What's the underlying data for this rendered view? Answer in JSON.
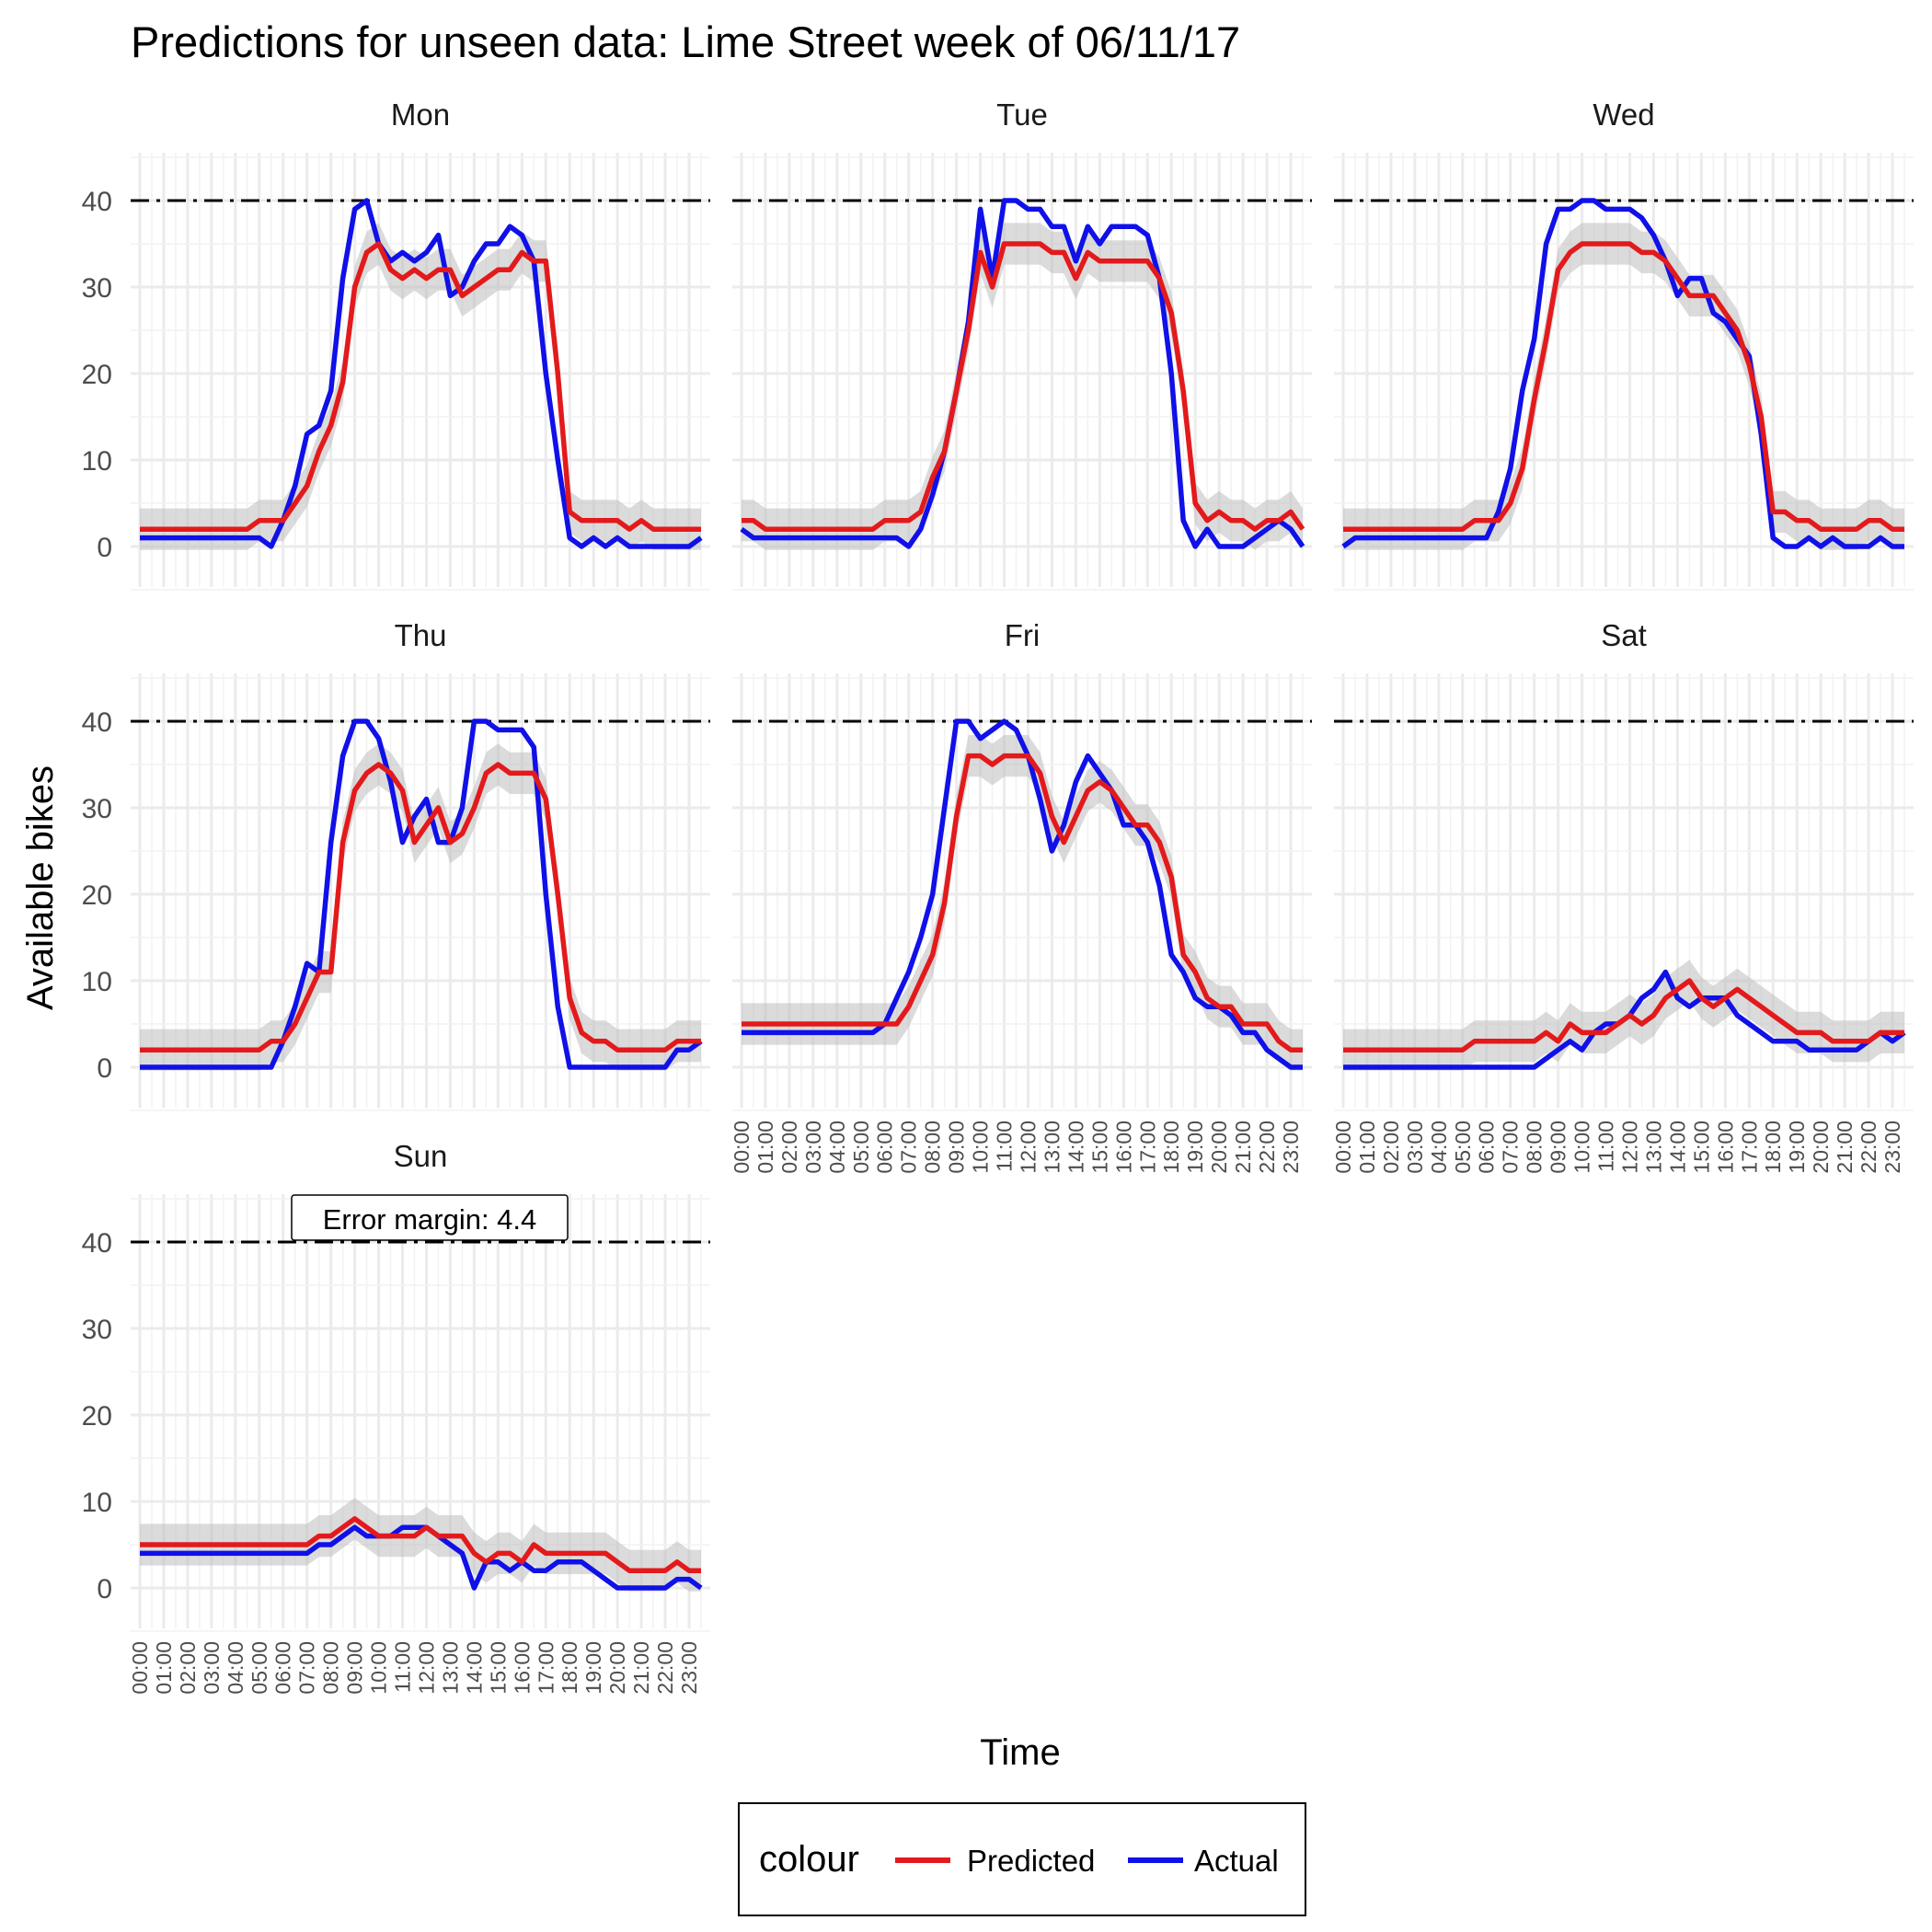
{
  "chart_data": {
    "type": "line",
    "title": "Predictions for unseen data: Lime Street week of 06/11/17",
    "xlabel": "Time",
    "ylabel": "Available bikes",
    "ylim": [
      0,
      45
    ],
    "y_ticks": [
      0,
      10,
      20,
      30,
      40
    ],
    "x_tick_labels": [
      "00:00",
      "01:00",
      "02:00",
      "03:00",
      "04:00",
      "05:00",
      "06:00",
      "07:00",
      "08:00",
      "09:00",
      "10:00",
      "11:00",
      "12:00",
      "13:00",
      "14:00",
      "15:00",
      "16:00",
      "17:00",
      "18:00",
      "19:00",
      "20:00",
      "21:00",
      "22:00",
      "23:00"
    ],
    "capacity_line": 40,
    "ribbon_half_width": 2.4,
    "grid": true,
    "legend": {
      "title": "colour",
      "position": "bottom",
      "entries": [
        {
          "name": "Predicted",
          "color": "#e31a1c"
        },
        {
          "name": "Actual",
          "color": "#1010e8"
        }
      ]
    },
    "annotation": {
      "panel": "Sun",
      "text": "Error margin: 4.4"
    },
    "panels": [
      {
        "name": "Mon",
        "x": [
          0,
          0.5,
          1,
          1.5,
          2,
          2.5,
          3,
          3.5,
          4,
          4.5,
          5,
          5.5,
          6,
          6.5,
          7,
          7.5,
          8,
          8.5,
          9,
          9.5,
          10,
          10.5,
          11,
          11.5,
          12,
          12.5,
          13,
          13.5,
          14,
          14.5,
          15,
          15.5,
          16,
          16.5,
          17,
          17.5,
          18,
          18.5,
          19,
          19.5,
          20,
          20.5,
          21,
          21.5,
          22,
          22.5,
          23,
          23.5
        ],
        "predicted": [
          2,
          2,
          2,
          2,
          2,
          2,
          2,
          2,
          2,
          2,
          3,
          3,
          3,
          5,
          7,
          11,
          14,
          19,
          30,
          34,
          35,
          32,
          31,
          32,
          31,
          32,
          32,
          29,
          30,
          31,
          32,
          32,
          34,
          33,
          33,
          20,
          4,
          3,
          3,
          3,
          3,
          2,
          3,
          2,
          2,
          2,
          2,
          2
        ],
        "actual": [
          1,
          1,
          1,
          1,
          1,
          1,
          1,
          1,
          1,
          1,
          1,
          0,
          3,
          7,
          13,
          14,
          18,
          31,
          39,
          40,
          35,
          33,
          34,
          33,
          34,
          36,
          29,
          30,
          33,
          35,
          35,
          37,
          36,
          33,
          20,
          10,
          1,
          0,
          1,
          0,
          1,
          0,
          0,
          0,
          0,
          0,
          0,
          1
        ]
      },
      {
        "name": "Tue",
        "x": [
          0,
          0.5,
          1,
          1.5,
          2,
          2.5,
          3,
          3.5,
          4,
          4.5,
          5,
          5.5,
          6,
          6.5,
          7,
          7.5,
          8,
          8.5,
          9,
          9.5,
          10,
          10.5,
          11,
          11.5,
          12,
          12.5,
          13,
          13.5,
          14,
          14.5,
          15,
          15.5,
          16,
          16.5,
          17,
          17.5,
          18,
          18.5,
          19,
          19.5,
          20,
          20.5,
          21,
          21.5,
          22,
          22.5,
          23,
          23.5
        ],
        "predicted": [
          3,
          3,
          2,
          2,
          2,
          2,
          2,
          2,
          2,
          2,
          2,
          2,
          3,
          3,
          3,
          4,
          8,
          11,
          18,
          25,
          34,
          30,
          35,
          35,
          35,
          35,
          34,
          34,
          31,
          34,
          33,
          33,
          33,
          33,
          33,
          31,
          27,
          18,
          5,
          3,
          4,
          3,
          3,
          2,
          3,
          3,
          4,
          2
        ],
        "actual": [
          2,
          1,
          1,
          1,
          1,
          1,
          1,
          1,
          1,
          1,
          1,
          1,
          1,
          1,
          0,
          2,
          6,
          11,
          18,
          26,
          39,
          31,
          40,
          40,
          39,
          39,
          37,
          37,
          33,
          37,
          35,
          37,
          37,
          37,
          36,
          31,
          20,
          3,
          0,
          2,
          0,
          0,
          0,
          1,
          2,
          3,
          2,
          0
        ]
      },
      {
        "name": "Wed",
        "x": [
          0,
          0.5,
          1,
          1.5,
          2,
          2.5,
          3,
          3.5,
          4,
          4.5,
          5,
          5.5,
          6,
          6.5,
          7,
          7.5,
          8,
          8.5,
          9,
          9.5,
          10,
          10.5,
          11,
          11.5,
          12,
          12.5,
          13,
          13.5,
          14,
          14.5,
          15,
          15.5,
          16,
          16.5,
          17,
          17.5,
          18,
          18.5,
          19,
          19.5,
          20,
          20.5,
          21,
          21.5,
          22,
          22.5,
          23,
          23.5
        ],
        "predicted": [
          2,
          2,
          2,
          2,
          2,
          2,
          2,
          2,
          2,
          2,
          2,
          3,
          3,
          3,
          5,
          9,
          17,
          24,
          32,
          34,
          35,
          35,
          35,
          35,
          35,
          34,
          34,
          33,
          31,
          29,
          29,
          29,
          27,
          25,
          21,
          15,
          4,
          4,
          3,
          3,
          2,
          2,
          2,
          2,
          3,
          3,
          2,
          2
        ],
        "actual": [
          0,
          1,
          1,
          1,
          1,
          1,
          1,
          1,
          1,
          1,
          1,
          1,
          1,
          4,
          9,
          18,
          24,
          35,
          39,
          39,
          40,
          40,
          39,
          39,
          39,
          38,
          36,
          33,
          29,
          31,
          31,
          27,
          26,
          24,
          22,
          13,
          1,
          0,
          0,
          1,
          0,
          1,
          0,
          0,
          0,
          1,
          0,
          0
        ]
      },
      {
        "name": "Thu",
        "x": [
          0,
          0.5,
          1,
          1.5,
          2,
          2.5,
          3,
          3.5,
          4,
          4.5,
          5,
          5.5,
          6,
          6.5,
          7,
          7.5,
          8,
          8.5,
          9,
          9.5,
          10,
          10.5,
          11,
          11.5,
          12,
          12.5,
          13,
          13.5,
          14,
          14.5,
          15,
          15.5,
          16,
          16.5,
          17,
          17.5,
          18,
          18.5,
          19,
          19.5,
          20,
          20.5,
          21,
          21.5,
          22,
          22.5,
          23,
          23.5
        ],
        "predicted": [
          2,
          2,
          2,
          2,
          2,
          2,
          2,
          2,
          2,
          2,
          2,
          3,
          3,
          5,
          8,
          11,
          11,
          26,
          32,
          34,
          35,
          34,
          32,
          26,
          28,
          30,
          26,
          27,
          30,
          34,
          35,
          34,
          34,
          34,
          31,
          20,
          8,
          4,
          3,
          3,
          2,
          2,
          2,
          2,
          2,
          3,
          3,
          3
        ],
        "actual": [
          0,
          0,
          0,
          0,
          0,
          0,
          0,
          0,
          0,
          0,
          0,
          0,
          3,
          7,
          12,
          11,
          26,
          36,
          40,
          40,
          38,
          33,
          26,
          29,
          31,
          26,
          26,
          30,
          40,
          40,
          39,
          39,
          39,
          37,
          20,
          7,
          0,
          0,
          0,
          0,
          0,
          0,
          0,
          0,
          0,
          2,
          2,
          3
        ]
      },
      {
        "name": "Fri",
        "x": [
          0,
          0.5,
          1,
          1.5,
          2,
          2.5,
          3,
          3.5,
          4,
          4.5,
          5,
          5.5,
          6,
          6.5,
          7,
          7.5,
          8,
          8.5,
          9,
          9.5,
          10,
          10.5,
          11,
          11.5,
          12,
          12.5,
          13,
          13.5,
          14,
          14.5,
          15,
          15.5,
          16,
          16.5,
          17,
          17.5,
          18,
          18.5,
          19,
          19.5,
          20,
          20.5,
          21,
          21.5,
          22,
          22.5,
          23,
          23.5
        ],
        "predicted": [
          5,
          5,
          5,
          5,
          5,
          5,
          5,
          5,
          5,
          5,
          5,
          5,
          5,
          5,
          7,
          10,
          13,
          19,
          29,
          36,
          36,
          35,
          36,
          36,
          36,
          34,
          29,
          26,
          29,
          32,
          33,
          32,
          30,
          28,
          28,
          26,
          22,
          13,
          11,
          8,
          7,
          7,
          5,
          5,
          5,
          3,
          2,
          2
        ],
        "actual": [
          4,
          4,
          4,
          4,
          4,
          4,
          4,
          4,
          4,
          4,
          4,
          4,
          5,
          8,
          11,
          15,
          20,
          30,
          40,
          40,
          38,
          39,
          40,
          39,
          36,
          31,
          25,
          28,
          33,
          36,
          34,
          32,
          28,
          28,
          26,
          21,
          13,
          11,
          8,
          7,
          7,
          6,
          4,
          4,
          2,
          1,
          0,
          0
        ]
      },
      {
        "name": "Sat",
        "x": [
          0,
          0.5,
          1,
          1.5,
          2,
          2.5,
          3,
          3.5,
          4,
          4.5,
          5,
          5.5,
          6,
          6.5,
          7,
          7.5,
          8,
          8.5,
          9,
          9.5,
          10,
          10.5,
          11,
          11.5,
          12,
          12.5,
          13,
          13.5,
          14,
          14.5,
          15,
          15.5,
          16,
          16.5,
          17,
          17.5,
          18,
          18.5,
          19,
          19.5,
          20,
          20.5,
          21,
          21.5,
          22,
          22.5,
          23,
          23.5
        ],
        "predicted": [
          2,
          2,
          2,
          2,
          2,
          2,
          2,
          2,
          2,
          2,
          2,
          3,
          3,
          3,
          3,
          3,
          3,
          4,
          3,
          5,
          4,
          4,
          4,
          5,
          6,
          5,
          6,
          8,
          9,
          10,
          8,
          7,
          8,
          9,
          8,
          7,
          6,
          5,
          4,
          4,
          4,
          3,
          3,
          3,
          3,
          4,
          4,
          4
        ],
        "actual": [
          0,
          0,
          0,
          0,
          0,
          0,
          0,
          0,
          0,
          0,
          0,
          0,
          0,
          0,
          0,
          0,
          0,
          1,
          2,
          3,
          2,
          4,
          5,
          5,
          6,
          8,
          9,
          11,
          8,
          7,
          8,
          8,
          8,
          6,
          5,
          4,
          3,
          3,
          3,
          2,
          2,
          2,
          2,
          2,
          3,
          4,
          3,
          4
        ]
      },
      {
        "name": "Sun",
        "x": [
          0,
          0.5,
          1,
          1.5,
          2,
          2.5,
          3,
          3.5,
          4,
          4.5,
          5,
          5.5,
          6,
          6.5,
          7,
          7.5,
          8,
          8.5,
          9,
          9.5,
          10,
          10.5,
          11,
          11.5,
          12,
          12.5,
          13,
          13.5,
          14,
          14.5,
          15,
          15.5,
          16,
          16.5,
          17,
          17.5,
          18,
          18.5,
          19,
          19.5,
          20,
          20.5,
          21,
          21.5,
          22,
          22.5,
          23,
          23.5
        ],
        "predicted": [
          5,
          5,
          5,
          5,
          5,
          5,
          5,
          5,
          5,
          5,
          5,
          5,
          5,
          5,
          5,
          6,
          6,
          7,
          8,
          7,
          6,
          6,
          6,
          6,
          7,
          6,
          6,
          6,
          4,
          3,
          4,
          4,
          3,
          5,
          4,
          4,
          4,
          4,
          4,
          4,
          3,
          2,
          2,
          2,
          2,
          3,
          2,
          2
        ],
        "actual": [
          4,
          4,
          4,
          4,
          4,
          4,
          4,
          4,
          4,
          4,
          4,
          4,
          4,
          4,
          4,
          5,
          5,
          6,
          7,
          6,
          6,
          6,
          7,
          7,
          7,
          6,
          5,
          4,
          0,
          3,
          3,
          2,
          3,
          2,
          2,
          3,
          3,
          3,
          2,
          1,
          0,
          0,
          0,
          0,
          0,
          1,
          1,
          0
        ]
      }
    ]
  }
}
